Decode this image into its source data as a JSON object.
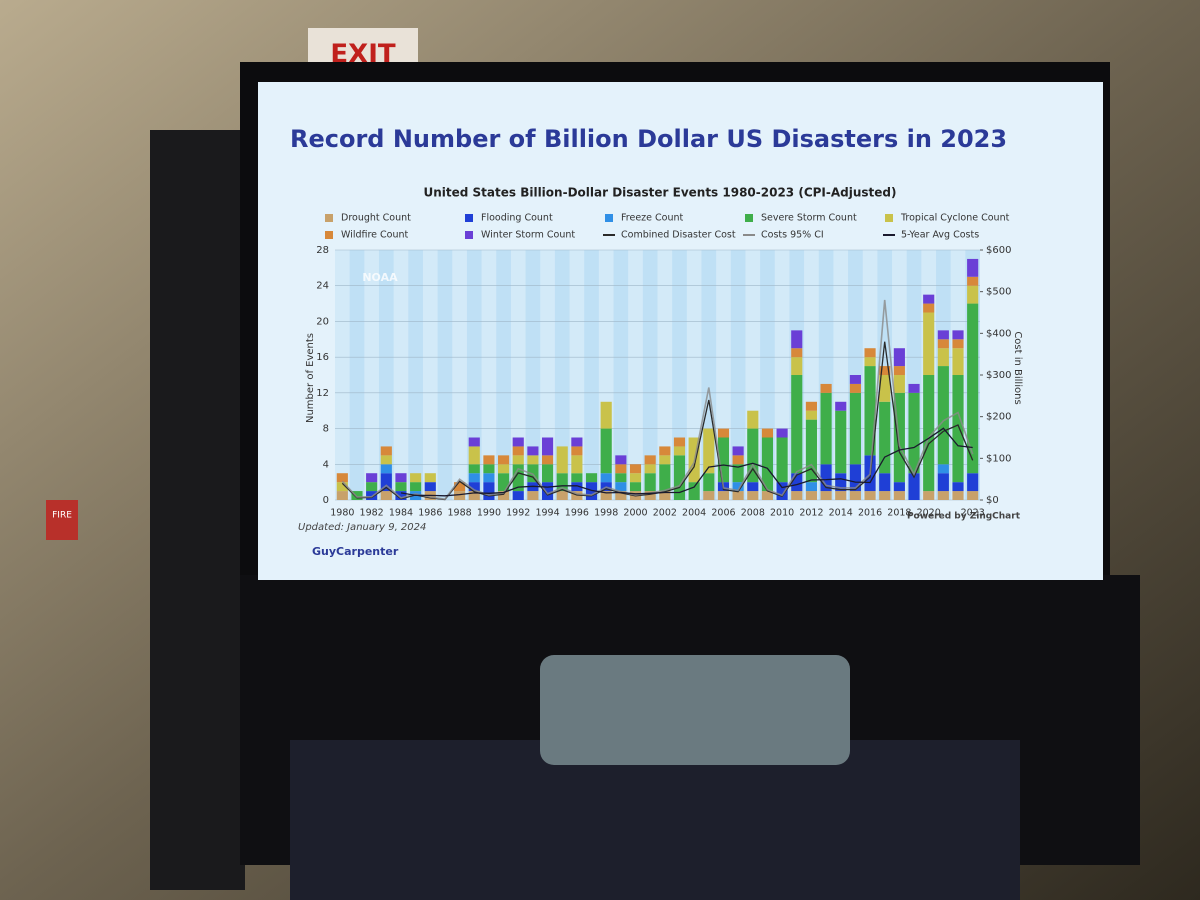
{
  "chart_data": {
    "type": "bar",
    "stacked": true,
    "slide_title": "Record Number of Billion Dollar US Disasters in 2023",
    "title": "United States Billion-Dollar Disaster Events 1980-2023 (CPI-Adjusted)",
    "y_label": "Number of Events",
    "y2_label": "Cost in Billions",
    "updated": "Updated: January 9, 2024",
    "credit": "Powered by ZingChart",
    "brand": "GuyCarpenter",
    "logo": "NOAA",
    "categories": [
      "1980",
      null,
      "1982",
      null,
      "1984",
      null,
      "1986",
      null,
      "1988",
      null,
      "1990",
      null,
      "1992",
      null,
      "1994",
      null,
      "1996",
      null,
      "1998",
      null,
      "2000",
      null,
      "2002",
      null,
      "2004",
      null,
      "2006",
      null,
      "2008",
      null,
      "2010",
      null,
      "2012",
      null,
      "2014",
      null,
      "2016",
      null,
      "2018",
      null,
      "2020",
      null,
      null,
      "2023"
    ],
    "ylim": [
      0,
      28
    ],
    "yticks": [
      0,
      4,
      8,
      12,
      16,
      20,
      24,
      28
    ],
    "y2lim": [
      0,
      600
    ],
    "y2ticks": [
      {
        "value": 0,
        "label": "$0"
      },
      {
        "value": 100,
        "label": "$100"
      },
      {
        "value": 200,
        "label": "$200"
      },
      {
        "value": 300,
        "label": "$300"
      },
      {
        "value": 400,
        "label": "$400"
      },
      {
        "value": 500,
        "label": "$500"
      },
      {
        "value": 600,
        "label": "$600"
      }
    ],
    "grid": true,
    "series": [
      {
        "name": "Drought Count",
        "color": "#c8a16a",
        "values": [
          1,
          0,
          0,
          1,
          0,
          0,
          1,
          0,
          1,
          1,
          0,
          1,
          0,
          1,
          0,
          1,
          1,
          0,
          1,
          1,
          1,
          1,
          1,
          0,
          0,
          1,
          1,
          1,
          1,
          1,
          0,
          1,
          1,
          1,
          1,
          1,
          1,
          1,
          1,
          0,
          1,
          1,
          1,
          1
        ]
      },
      {
        "name": "Flooding Count",
        "color": "#1f3fd6",
        "values": [
          0,
          0,
          1,
          2,
          1,
          0,
          1,
          0,
          0,
          1,
          2,
          0,
          1,
          1,
          2,
          0,
          1,
          2,
          1,
          0,
          0,
          0,
          0,
          0,
          0,
          0,
          1,
          0,
          1,
          0,
          2,
          2,
          0,
          3,
          2,
          3,
          4,
          2,
          1,
          3,
          0,
          2,
          1,
          2
        ]
      },
      {
        "name": "Freeze Count",
        "color": "#2f8fe6",
        "values": [
          0,
          0,
          0,
          1,
          0,
          1,
          0,
          0,
          0,
          1,
          1,
          0,
          0,
          0,
          0,
          0,
          0,
          0,
          1,
          1,
          0,
          0,
          0,
          0,
          0,
          0,
          0,
          1,
          0,
          0,
          0,
          0,
          1,
          0,
          0,
          0,
          0,
          0,
          0,
          0,
          0,
          1,
          0,
          0
        ]
      },
      {
        "name": "Severe Storm Count",
        "color": "#3fae4a",
        "values": [
          0,
          1,
          1,
          0,
          1,
          1,
          0,
          0,
          0,
          1,
          1,
          2,
          3,
          2,
          2,
          2,
          1,
          1,
          5,
          1,
          1,
          2,
          3,
          5,
          2,
          2,
          5,
          2,
          6,
          6,
          5,
          11,
          7,
          8,
          7,
          8,
          10,
          8,
          10,
          9,
          13,
          11,
          12,
          19
        ]
      },
      {
        "name": "Tropical Cyclone Count",
        "color": "#c9c24a",
        "values": [
          1,
          0,
          0,
          1,
          0,
          1,
          1,
          0,
          0,
          2,
          0,
          1,
          1,
          1,
          0,
          3,
          2,
          0,
          3,
          0,
          1,
          1,
          1,
          1,
          5,
          5,
          0,
          0,
          2,
          0,
          0,
          2,
          1,
          0,
          0,
          0,
          1,
          3,
          2,
          0,
          7,
          2,
          3,
          2
        ]
      },
      {
        "name": "Wildfire Count",
        "color": "#d7883a",
        "values": [
          1,
          0,
          0,
          1,
          0,
          0,
          0,
          0,
          1,
          0,
          1,
          1,
          1,
          0,
          1,
          0,
          1,
          0,
          0,
          1,
          1,
          1,
          1,
          1,
          0,
          0,
          1,
          1,
          0,
          1,
          0,
          1,
          1,
          1,
          0,
          1,
          1,
          1,
          1,
          0,
          1,
          1,
          1,
          1
        ]
      },
      {
        "name": "Winter Storm Count",
        "color": "#6a3fd6",
        "values": [
          0,
          0,
          1,
          0,
          1,
          0,
          0,
          0,
          0,
          1,
          0,
          0,
          1,
          1,
          2,
          0,
          1,
          0,
          0,
          1,
          0,
          0,
          0,
          0,
          0,
          0,
          0,
          1,
          0,
          0,
          1,
          2,
          0,
          0,
          1,
          1,
          0,
          0,
          2,
          1,
          1,
          1,
          1,
          2
        ]
      },
      {
        "name": "Combined Disaster Cost",
        "color": "#2a2a2a",
        "axis": "y2",
        "values": [
          40,
          5,
          6,
          30,
          3,
          12,
          5,
          1,
          45,
          20,
          10,
          14,
          65,
          55,
          12,
          25,
          12,
          10,
          27,
          17,
          10,
          14,
          20,
          30,
          80,
          240,
          25,
          20,
          75,
          22,
          9,
          60,
          75,
          30,
          25,
          25,
          55,
          380,
          115,
          55,
          135,
          165,
          180,
          95
        ]
      },
      {
        "name": "Costs 95% CI",
        "color": "#8a8a8a",
        "axis": "y2",
        "values": [
          45,
          7,
          8,
          35,
          5,
          15,
          7,
          2,
          50,
          24,
          12,
          17,
          75,
          62,
          15,
          29,
          15,
          12,
          31,
          20,
          12,
          17,
          23,
          34,
          90,
          270,
          29,
          23,
          85,
          25,
          11,
          68,
          85,
          35,
          29,
          29,
          62,
          480,
          130,
          62,
          150,
          190,
          210,
          110
        ]
      },
      {
        "name": "5-Year Avg Costs",
        "color": "#1a1a2e",
        "axis": "y2",
        "values": [
          null,
          null,
          null,
          null,
          17,
          11,
          11,
          10,
          13,
          17,
          16,
          18,
          31,
          33,
          31,
          34,
          34,
          23,
          17,
          18,
          15,
          16,
          18,
          18,
          31,
          79,
          84,
          79,
          88,
          76,
          30,
          37,
          48,
          49,
          51,
          43,
          42,
          103,
          120,
          126,
          148,
          172,
          130,
          126
        ]
      }
    ]
  },
  "room": {
    "exit_sign": "EXIT",
    "fire_sign": "FIRE"
  }
}
